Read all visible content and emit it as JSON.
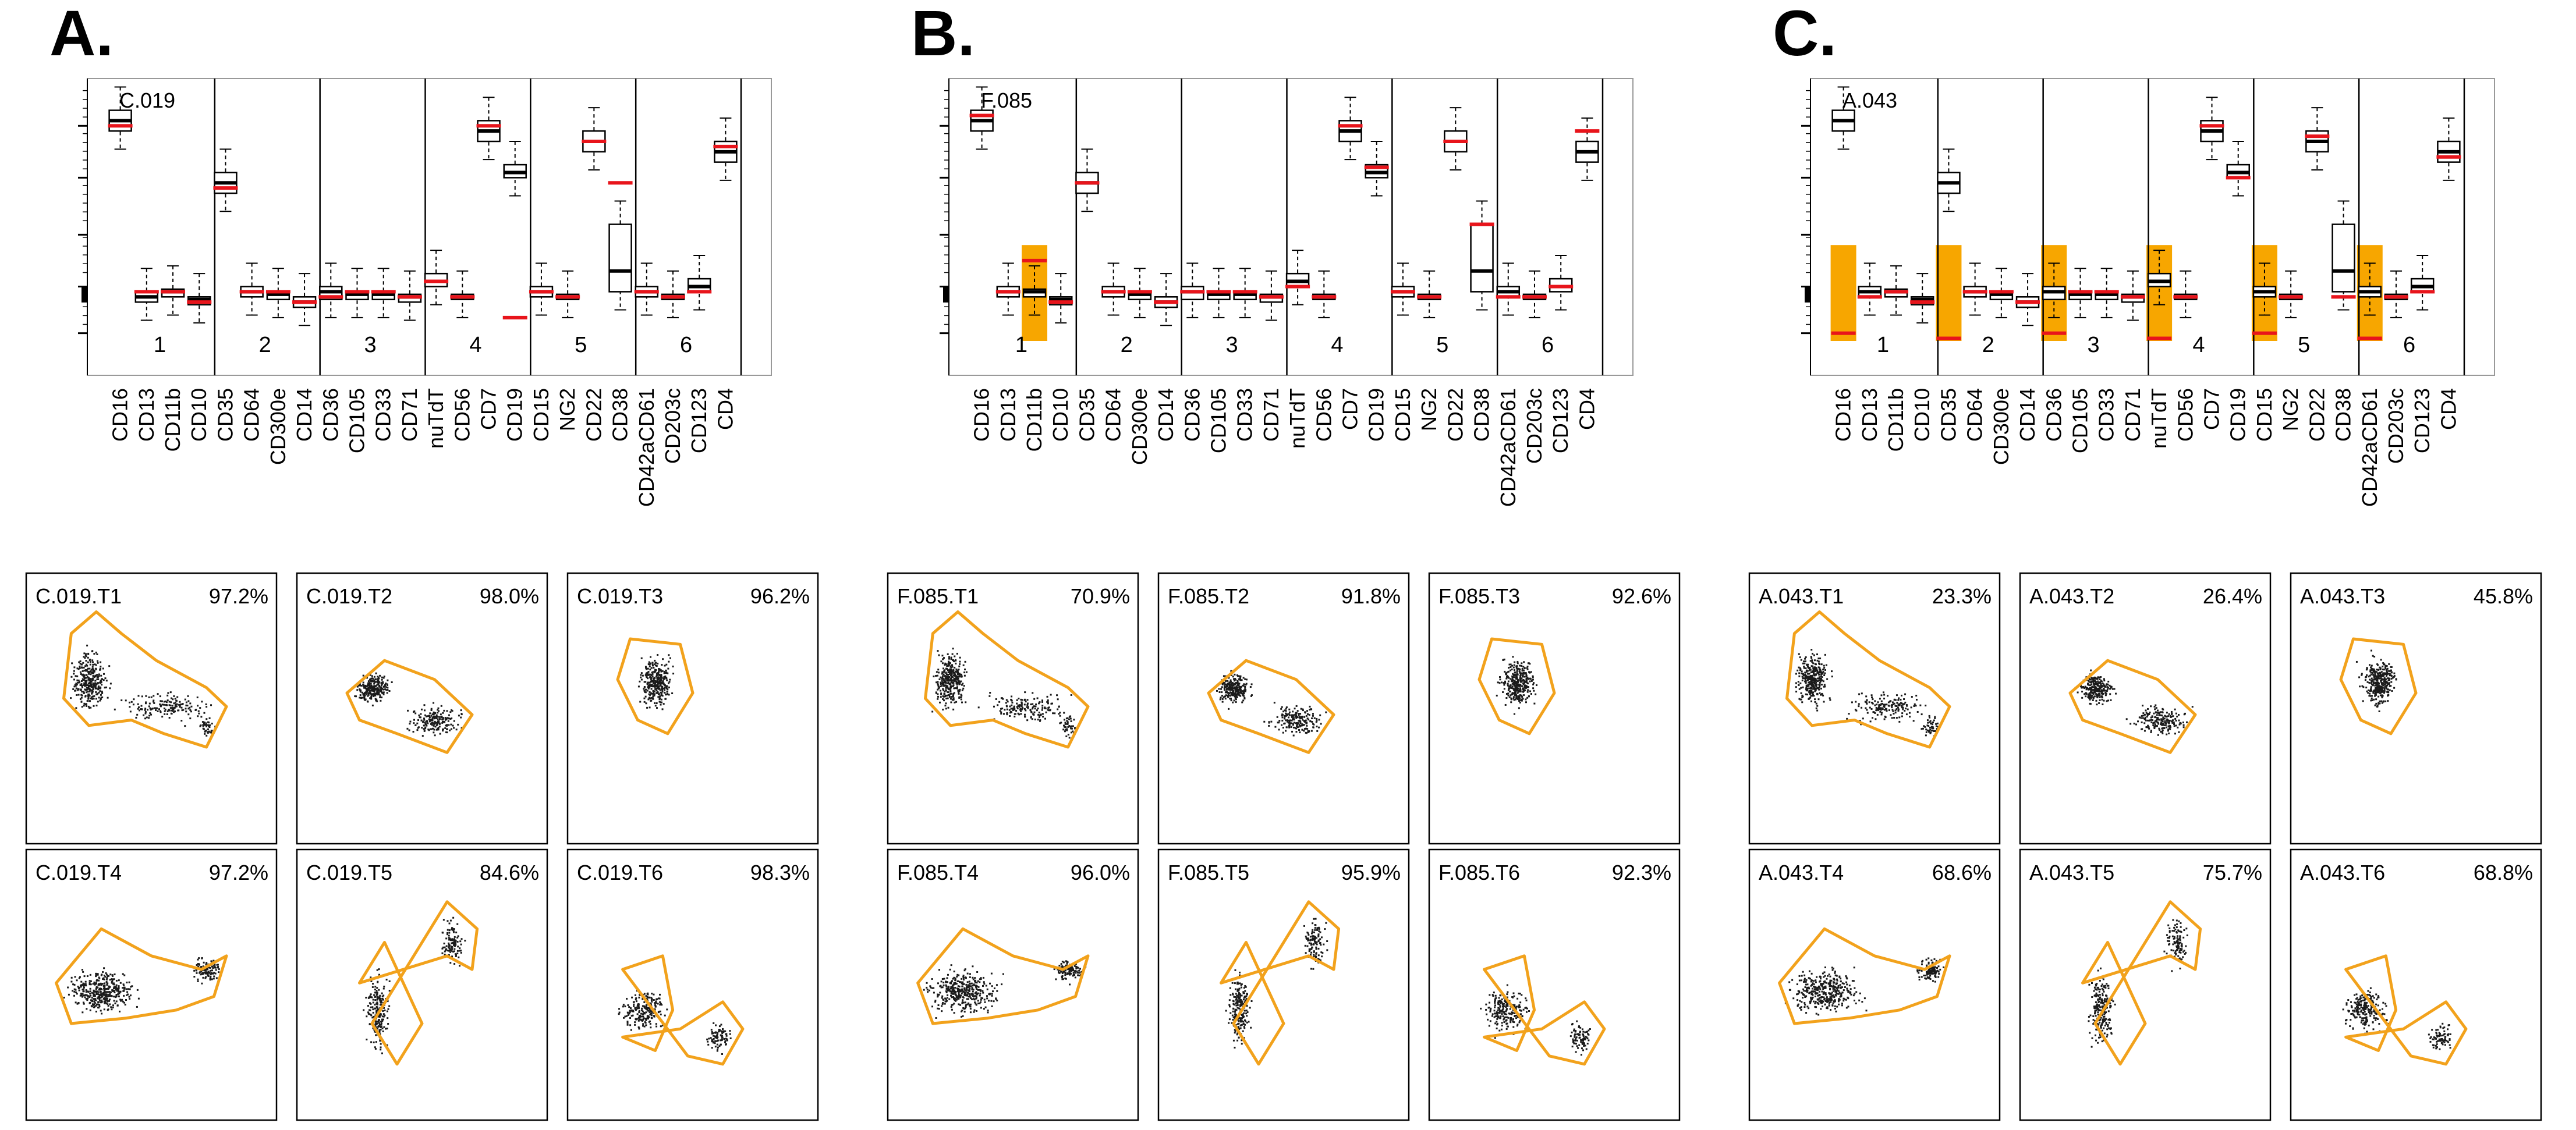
{
  "chart_data": [
    {
      "type": "boxplot",
      "panel_label": "A.",
      "sample_id": "C.019",
      "markers": [
        "CD16",
        "CD13",
        "CD11b",
        "CD10",
        "CD35",
        "CD64",
        "CD300e",
        "CD14",
        "CD36",
        "CD105",
        "CD33",
        "CD71",
        "nuTdT",
        "CD56",
        "CD7",
        "CD19",
        "CD15",
        "NG2",
        "CD22",
        "CD38",
        "CD42aCD61",
        "CD203c",
        "CD123",
        "CD4"
      ],
      "group_labels": [
        "1",
        "2",
        "3",
        "4",
        "5",
        "6"
      ],
      "group_sizes": [
        4,
        4,
        4,
        4,
        4,
        4
      ],
      "y_scale": "log",
      "median_level": [
        5.3,
        1.9,
        2.0,
        1.85,
        4.1,
        2.0,
        1.95,
        1.8,
        2.0,
        1.95,
        1.95,
        1.9,
        2.2,
        1.9,
        5.1,
        4.3,
        2.0,
        1.9,
        4.9,
        2.4,
        2.0,
        1.9,
        2.1,
        4.7
      ],
      "q_low": [
        5.1,
        1.8,
        1.9,
        1.75,
        3.9,
        1.9,
        1.85,
        1.7,
        1.85,
        1.85,
        1.85,
        1.8,
        2.1,
        1.85,
        4.9,
        4.2,
        1.9,
        1.85,
        4.7,
        2.0,
        1.9,
        1.85,
        2.0,
        4.5
      ],
      "q_high": [
        5.5,
        2.0,
        2.05,
        1.9,
        4.3,
        2.1,
        2.0,
        1.9,
        2.1,
        2.0,
        2.0,
        1.95,
        2.35,
        1.95,
        5.3,
        4.45,
        2.1,
        1.95,
        5.1,
        3.3,
        2.1,
        1.95,
        2.25,
        4.9
      ],
      "reference_red": [
        5.2,
        2.0,
        2.0,
        1.8,
        4.0,
        2.0,
        2.0,
        1.8,
        1.9,
        2.0,
        2.0,
        1.9,
        2.2,
        1.9,
        5.2,
        1.5,
        2.0,
        1.9,
        4.9,
        4.1,
        2.0,
        1.9,
        2.0,
        4.8
      ],
      "highlighted_groups": []
    },
    {
      "type": "boxplot",
      "panel_label": "B.",
      "sample_id": "F.085",
      "markers": [
        "CD16",
        "CD13",
        "CD11b",
        "CD10",
        "CD35",
        "CD64",
        "CD300e",
        "CD14",
        "CD36",
        "CD105",
        "CD33",
        "CD71",
        "nuTdT",
        "CD56",
        "CD7",
        "CD19",
        "CD15",
        "NG2",
        "CD22",
        "CD38",
        "CD42aCD61",
        "CD203c",
        "CD123",
        "CD4"
      ],
      "group_labels": [
        "1",
        "2",
        "3",
        "4",
        "5",
        "6"
      ],
      "group_sizes": [
        4,
        4,
        4,
        4,
        4,
        4
      ],
      "y_scale": "log",
      "median_level": [
        5.3,
        2.0,
        2.0,
        1.85,
        4.1,
        2.0,
        1.95,
        1.8,
        2.0,
        1.95,
        1.95,
        1.9,
        2.2,
        1.9,
        5.1,
        4.3,
        2.0,
        1.9,
        4.9,
        2.4,
        2.0,
        1.9,
        2.1,
        4.7
      ],
      "q_low": [
        5.1,
        1.9,
        1.9,
        1.75,
        3.9,
        1.9,
        1.85,
        1.7,
        1.85,
        1.85,
        1.85,
        1.8,
        2.1,
        1.85,
        4.9,
        4.2,
        1.9,
        1.85,
        4.7,
        2.0,
        1.9,
        1.85,
        2.0,
        4.5
      ],
      "q_high": [
        5.5,
        2.1,
        2.05,
        1.9,
        4.3,
        2.1,
        2.0,
        1.9,
        2.1,
        2.0,
        2.0,
        1.95,
        2.35,
        1.95,
        5.3,
        4.45,
        2.1,
        1.95,
        5.1,
        3.3,
        2.1,
        1.95,
        2.25,
        4.9
      ],
      "reference_red": [
        5.4,
        2.0,
        2.6,
        1.8,
        4.1,
        2.0,
        2.0,
        1.8,
        2.0,
        2.0,
        2.0,
        1.9,
        2.1,
        1.9,
        5.2,
        4.4,
        2.0,
        1.9,
        4.9,
        3.3,
        1.9,
        1.9,
        2.1,
        5.1
      ],
      "highlighted_groups": [
        1
      ]
    },
    {
      "type": "boxplot",
      "panel_label": "C.",
      "sample_id": "A.043",
      "markers": [
        "CD16",
        "CD13",
        "CD11b",
        "CD10",
        "CD35",
        "CD64",
        "CD300e",
        "CD14",
        "CD36",
        "CD105",
        "CD33",
        "CD71",
        "nuTdT",
        "CD56",
        "CD7",
        "CD19",
        "CD15",
        "NG2",
        "CD22",
        "CD38",
        "CD42aCD61",
        "CD203c",
        "CD123",
        "CD4"
      ],
      "group_labels": [
        "1",
        "2",
        "3",
        "4",
        "5",
        "6"
      ],
      "group_sizes": [
        4,
        4,
        4,
        4,
        4,
        4
      ],
      "y_scale": "log",
      "median_level": [
        5.3,
        2.0,
        2.0,
        1.85,
        4.1,
        2.0,
        1.95,
        1.8,
        2.0,
        1.95,
        1.95,
        1.9,
        2.2,
        1.9,
        5.1,
        4.3,
        2.0,
        1.9,
        4.9,
        2.4,
        2.0,
        1.9,
        2.1,
        4.7
      ],
      "q_low": [
        5.1,
        1.9,
        1.9,
        1.75,
        3.9,
        1.9,
        1.85,
        1.7,
        1.85,
        1.85,
        1.85,
        1.8,
        2.1,
        1.85,
        4.9,
        4.2,
        1.9,
        1.85,
        4.7,
        2.0,
        1.9,
        1.85,
        2.0,
        4.5
      ],
      "q_high": [
        5.5,
        2.1,
        2.05,
        1.9,
        4.3,
        2.1,
        2.0,
        1.9,
        2.1,
        2.0,
        2.0,
        1.95,
        2.35,
        1.95,
        5.3,
        4.45,
        2.1,
        1.95,
        5.1,
        3.3,
        2.1,
        1.95,
        2.25,
        4.9
      ],
      "reference_red": [
        1.2,
        1.9,
        2.0,
        1.8,
        1.1,
        2.0,
        2.0,
        1.8,
        1.2,
        2.0,
        2.0,
        1.9,
        1.1,
        1.9,
        5.2,
        4.2,
        1.2,
        1.9,
        5.0,
        1.9,
        1.1,
        1.9,
        2.0,
        4.6
      ],
      "highlighted_groups": [
        1,
        2,
        3,
        4,
        5,
        6
      ]
    }
  ],
  "scatter_panels": [
    {
      "group": "A.",
      "tiles": [
        {
          "name": "C.019.T1",
          "pct": "97.2%",
          "flag": false,
          "shape": "wide"
        },
        {
          "name": "C.019.T2",
          "pct": "98.0%",
          "flag": false,
          "shape": "diag"
        },
        {
          "name": "C.019.T3",
          "pct": "96.2%",
          "flag": false,
          "shape": "blob"
        },
        {
          "name": "C.019.T4",
          "pct": "97.2%",
          "flag": false,
          "shape": "wide2"
        },
        {
          "name": "C.019.T5",
          "pct": "84.6%",
          "flag": false,
          "shape": "twin"
        },
        {
          "name": "C.019.T6",
          "pct": "98.3%",
          "flag": false,
          "shape": "pair"
        }
      ]
    },
    {
      "group": "B.",
      "tiles": [
        {
          "name": "F.085.T1",
          "pct": "70.9%",
          "flag": true,
          "shape": "wide"
        },
        {
          "name": "F.085.T2",
          "pct": "91.8%",
          "flag": false,
          "shape": "diag"
        },
        {
          "name": "F.085.T3",
          "pct": "92.6%",
          "flag": false,
          "shape": "blob"
        },
        {
          "name": "F.085.T4",
          "pct": "96.0%",
          "flag": false,
          "shape": "wide2"
        },
        {
          "name": "F.085.T5",
          "pct": "95.9%",
          "flag": false,
          "shape": "twin"
        },
        {
          "name": "F.085.T6",
          "pct": "92.3%",
          "flag": false,
          "shape": "pair"
        }
      ]
    },
    {
      "group": "C.",
      "tiles": [
        {
          "name": "A.043.T1",
          "pct": "23.3%",
          "flag": true,
          "shape": "wide"
        },
        {
          "name": "A.043.T2",
          "pct": "26.4%",
          "flag": true,
          "shape": "diag"
        },
        {
          "name": "A.043.T3",
          "pct": "45.8%",
          "flag": true,
          "shape": "blob"
        },
        {
          "name": "A.043.T4",
          "pct": "68.6%",
          "flag": true,
          "shape": "wide2"
        },
        {
          "name": "A.043.T5",
          "pct": "75.7%",
          "flag": true,
          "shape": "twin"
        },
        {
          "name": "A.043.T6",
          "pct": "68.8%",
          "flag": true,
          "shape": "pair"
        }
      ]
    }
  ],
  "colors": {
    "gate": "#f2a21c",
    "highlight": "#f7a600",
    "flag_text": "#e8141b",
    "reference": "#e8141b",
    "points": "#1a1a1a"
  }
}
